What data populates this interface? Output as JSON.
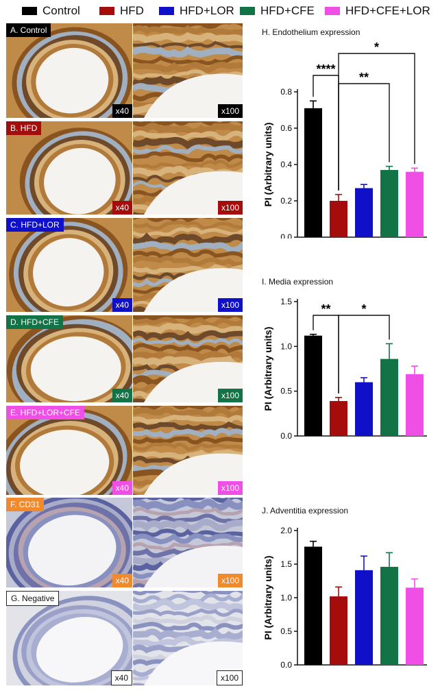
{
  "legend": [
    {
      "label": "Control",
      "color": "#000000"
    },
    {
      "label": "HFD",
      "color": "#a50d0d"
    },
    {
      "label": "HFD+LOR",
      "color": "#1010c8"
    },
    {
      "label": "HFD+CFE",
      "color": "#127346"
    },
    {
      "label": "HFD+CFE+LOR",
      "color": "#f04fe6"
    }
  ],
  "histology": {
    "rows": [
      {
        "tag": "A. Control",
        "tag_color": "#000000",
        "mag_left": "x40",
        "mag_right": "x100",
        "mag_color": "#000000",
        "stain": "brown"
      },
      {
        "tag": "B. HFD",
        "tag_color": "#a50d0d",
        "mag_left": "x40",
        "mag_right": "x100",
        "mag_color": "#a50d0d",
        "stain": "brown"
      },
      {
        "tag": "C. HFD+LOR",
        "tag_color": "#1010c8",
        "mag_left": "x40",
        "mag_right": "x100",
        "mag_color": "#1010c8",
        "stain": "brown"
      },
      {
        "tag": "D. HFD+CFE",
        "tag_color": "#127346",
        "mag_left": "x40",
        "mag_right": "x100",
        "mag_color": "#127346",
        "stain": "brown"
      },
      {
        "tag": "E. HFD+LOR+CFE",
        "tag_color": "#f04fe6",
        "mag_left": "x40",
        "mag_right": "x100",
        "mag_color": "#f04fe6",
        "stain": "brown"
      },
      {
        "tag": "F. CD31",
        "tag_color": "#f08a2c",
        "mag_left": "x40",
        "mag_right": "x100",
        "mag_color": "#f08a2c",
        "stain": "blue"
      },
      {
        "tag": "G. Negative",
        "tag_color": "#ffffff",
        "mag_left": "x40",
        "mag_right": "x100",
        "mag_color": "#ffffff",
        "stain": "pale"
      }
    ]
  },
  "chart_data": [
    {
      "type": "bar",
      "title": "H. Endothelium expression",
      "ylabel": "PI (Arbitrary units)",
      "ylim": [
        0,
        0.8
      ],
      "yticks": [
        "0.0",
        "0.2",
        "0.4",
        "0.6",
        "0.8"
      ],
      "categories": [
        "Control",
        "HFD",
        "HFD+LOR",
        "HFD+CFE",
        "HFD+CFE+LOR"
      ],
      "values": [
        0.71,
        0.2,
        0.27,
        0.37,
        0.36
      ],
      "errors": [
        0.04,
        0.035,
        0.02,
        0.02,
        0.02
      ],
      "significance": [
        {
          "from": 1,
          "to": 4,
          "label": "*"
        },
        {
          "from": 0,
          "to": 1,
          "label": "****"
        },
        {
          "from": 1,
          "to": 3,
          "label": "**"
        }
      ]
    },
    {
      "type": "bar",
      "title": "I. Media expression",
      "ylabel": "PI (Arbitrary units)",
      "ylim": [
        0,
        1.5
      ],
      "yticks": [
        "0.0",
        "0.5",
        "1.0",
        "1.5"
      ],
      "categories": [
        "Control",
        "HFD",
        "HFD+LOR",
        "HFD+CFE",
        "HFD+CFE+LOR"
      ],
      "values": [
        1.12,
        0.39,
        0.6,
        0.86,
        0.69
      ],
      "errors": [
        0.015,
        0.04,
        0.05,
        0.17,
        0.09
      ],
      "significance": [
        {
          "from": 0,
          "to": 1,
          "label": "**"
        },
        {
          "from": 1,
          "to": 3,
          "label": "*"
        }
      ]
    },
    {
      "type": "bar",
      "title": "J. Adventitia expression",
      "ylabel": "PI (Arbitrary units)",
      "ylim": [
        0,
        2.0
      ],
      "yticks": [
        "0.0",
        "0.5",
        "1.0",
        "1.5",
        "2.0"
      ],
      "categories": [
        "Control",
        "HFD",
        "HFD+LOR",
        "HFD+CFE",
        "HFD+CFE+LOR"
      ],
      "values": [
        1.76,
        1.02,
        1.41,
        1.46,
        1.15
      ],
      "errors": [
        0.08,
        0.14,
        0.21,
        0.21,
        0.13
      ],
      "significance": []
    }
  ]
}
